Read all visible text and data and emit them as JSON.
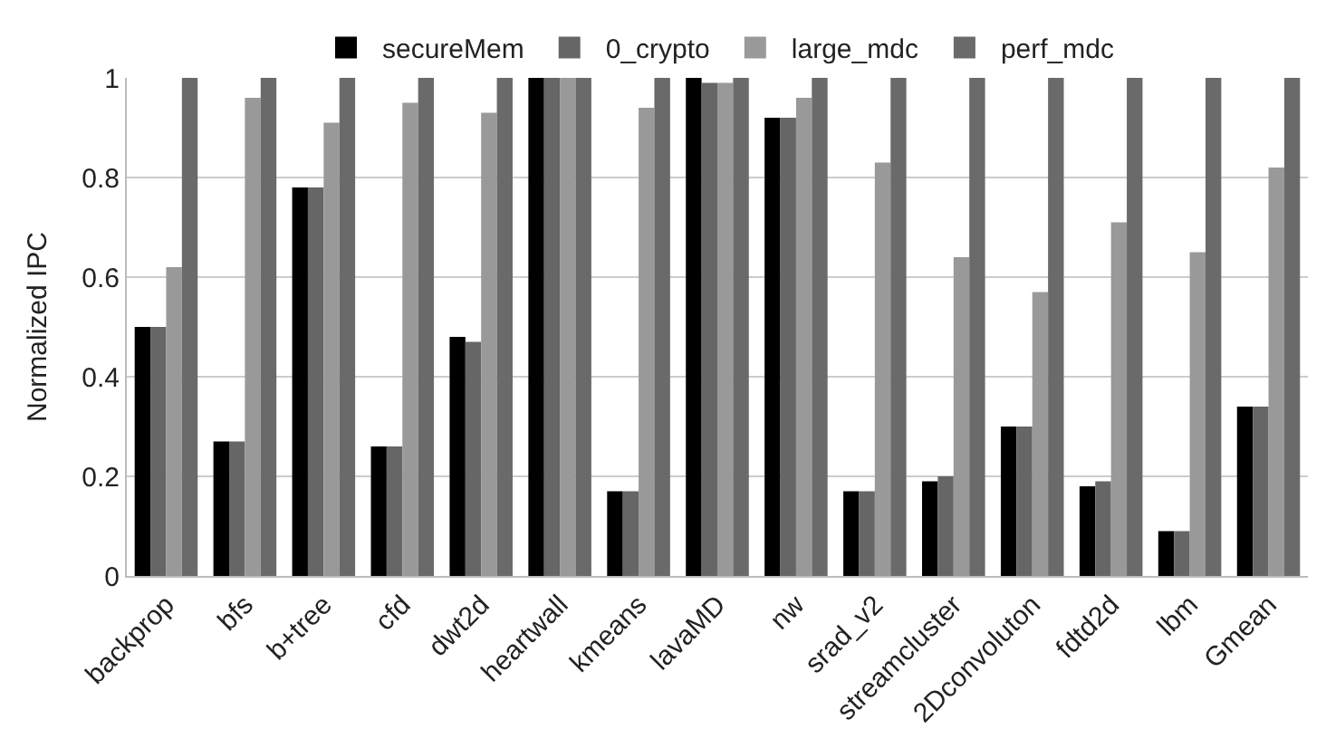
{
  "chart_data": {
    "type": "bar",
    "ylabel": "Normalized IPC",
    "categories": [
      "backprop",
      "bfs",
      "b+tree",
      "cfd",
      "dwt2d",
      "heartwall",
      "kmeans",
      "lavaMD",
      "nw",
      "srad_v2",
      "streamcluster",
      "2Dconvoluton",
      "fdtd2d",
      "lbm",
      "Gmean"
    ],
    "series": [
      {
        "name": "secureMem",
        "color": "#000000",
        "values": [
          0.5,
          0.27,
          0.78,
          0.26,
          0.48,
          1,
          0.17,
          1,
          0.92,
          0.17,
          0.19,
          0.3,
          0.18,
          0.09,
          0.34
        ]
      },
      {
        "name": "0_crypto",
        "color": "#666666",
        "values": [
          0.5,
          0.27,
          0.78,
          0.26,
          0.47,
          1,
          0.17,
          0.99,
          0.92,
          0.17,
          0.2,
          0.3,
          0.19,
          0.09,
          0.34
        ]
      },
      {
        "name": "large_mdc",
        "color": "#999999",
        "values": [
          0.62,
          0.96,
          0.91,
          0.95,
          0.93,
          1,
          0.94,
          0.99,
          0.96,
          0.83,
          0.64,
          0.57,
          0.71,
          0.65,
          0.82
        ]
      },
      {
        "name": "perf_mdc",
        "color": "#6a6a6a",
        "values": [
          1,
          1,
          1,
          1,
          1,
          1,
          1,
          1,
          1,
          1,
          1,
          1,
          1,
          1,
          1
        ]
      }
    ],
    "ylim": [
      0,
      1
    ],
    "yticks": [
      0,
      0.2,
      0.4,
      0.6,
      0.8,
      1
    ],
    "grid": "y",
    "legend": "top"
  }
}
